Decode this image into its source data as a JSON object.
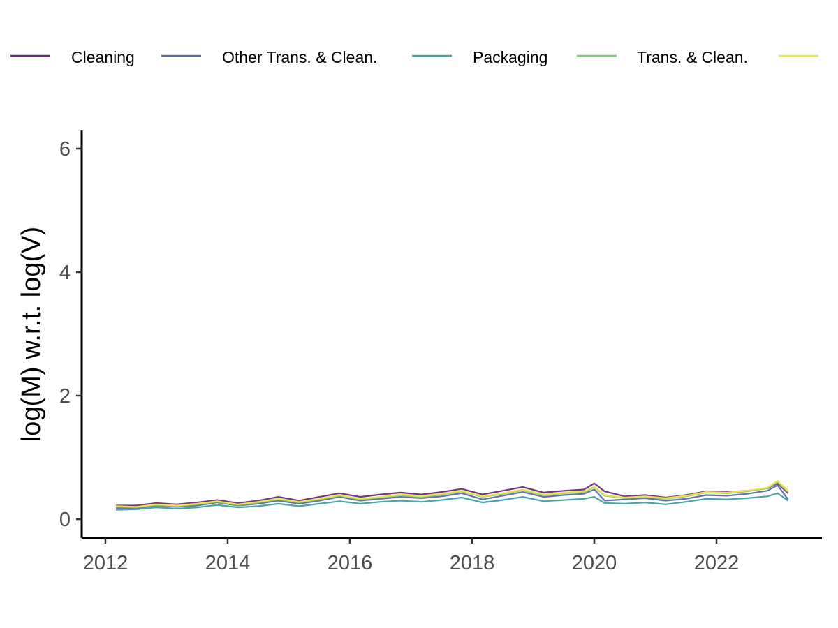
{
  "chart_data": {
    "type": "line",
    "title": "",
    "xlabel": "",
    "ylabel": "log(M) w.r.t. log(V)",
    "xlim": [
      2011.8,
      2023.6
    ],
    "ylim": [
      -0.3,
      6.3
    ],
    "x_ticks": [
      2012,
      2014,
      2016,
      2018,
      2020,
      2022
    ],
    "y_ticks": [
      0,
      2,
      4,
      6
    ],
    "grid": false,
    "legend_position": "top",
    "x": [
      2012.17,
      2012.5,
      2012.83,
      2013.17,
      2013.5,
      2013.83,
      2014.17,
      2014.5,
      2014.83,
      2015.17,
      2015.5,
      2015.83,
      2016.17,
      2016.5,
      2016.83,
      2017.17,
      2017.5,
      2017.83,
      2018.17,
      2018.5,
      2018.83,
      2019.17,
      2019.5,
      2019.83,
      2020.0,
      2020.17,
      2020.5,
      2020.83,
      2021.17,
      2021.5,
      2021.83,
      2022.17,
      2022.5,
      2022.83,
      2023.0,
      2023.17
    ],
    "series": [
      {
        "name": "Cleaning",
        "color": "#6a2c7a",
        "values": [
          0.22,
          0.22,
          0.26,
          0.24,
          0.27,
          0.31,
          0.26,
          0.3,
          0.36,
          0.3,
          0.36,
          0.42,
          0.36,
          0.4,
          0.43,
          0.4,
          0.44,
          0.49,
          0.4,
          0.46,
          0.52,
          0.43,
          0.46,
          0.48,
          0.58,
          0.45,
          0.37,
          0.39,
          0.35,
          0.39,
          0.45,
          0.44,
          0.46,
          0.5,
          0.58,
          0.42
        ]
      },
      {
        "name": "Other Trans. & Clean.",
        "color": "#5b6da8",
        "values": [
          0.18,
          0.18,
          0.22,
          0.2,
          0.22,
          0.27,
          0.22,
          0.25,
          0.3,
          0.25,
          0.3,
          0.36,
          0.3,
          0.33,
          0.36,
          0.34,
          0.37,
          0.42,
          0.32,
          0.38,
          0.44,
          0.36,
          0.39,
          0.41,
          0.48,
          0.3,
          0.32,
          0.34,
          0.3,
          0.33,
          0.39,
          0.38,
          0.41,
          0.46,
          0.55,
          0.32
        ]
      },
      {
        "name": "Packaging",
        "color": "#3e9fa0",
        "values": [
          0.15,
          0.16,
          0.19,
          0.17,
          0.19,
          0.23,
          0.19,
          0.21,
          0.25,
          0.21,
          0.25,
          0.29,
          0.25,
          0.28,
          0.3,
          0.28,
          0.31,
          0.35,
          0.27,
          0.31,
          0.36,
          0.29,
          0.31,
          0.33,
          0.36,
          0.26,
          0.25,
          0.27,
          0.24,
          0.28,
          0.33,
          0.32,
          0.34,
          0.37,
          0.42,
          0.3
        ]
      },
      {
        "name": "Trans. & Clean.",
        "color": "#7cc97a",
        "values": [
          0.2,
          0.19,
          0.23,
          0.21,
          0.24,
          0.28,
          0.23,
          0.27,
          0.32,
          0.27,
          0.32,
          0.38,
          0.32,
          0.35,
          0.39,
          0.36,
          0.4,
          0.45,
          0.36,
          0.41,
          0.47,
          0.39,
          0.42,
          0.44,
          0.52,
          0.38,
          0.34,
          0.36,
          0.33,
          0.37,
          0.43,
          0.42,
          0.45,
          0.5,
          0.6,
          0.44
        ]
      },
      {
        "name": "",
        "color": "#f2e442",
        "values": [
          0.21,
          0.2,
          0.24,
          0.22,
          0.25,
          0.29,
          0.24,
          0.28,
          0.33,
          0.28,
          0.33,
          0.39,
          0.33,
          0.36,
          0.4,
          0.37,
          0.41,
          0.46,
          0.37,
          0.42,
          0.48,
          0.4,
          0.43,
          0.45,
          0.53,
          0.39,
          0.35,
          0.37,
          0.34,
          0.38,
          0.44,
          0.43,
          0.46,
          0.51,
          0.62,
          0.46
        ]
      }
    ]
  }
}
